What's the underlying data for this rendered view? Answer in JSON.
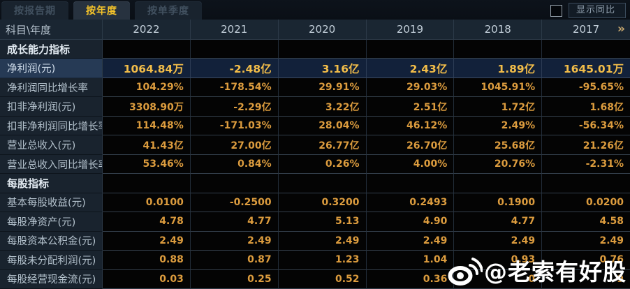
{
  "tabs": [
    {
      "label": "按报告期",
      "active": false
    },
    {
      "label": "按年度",
      "active": true
    },
    {
      "label": "按单季度",
      "active": false
    }
  ],
  "controls": {
    "show_yoy_label": "显示同比",
    "checkbox_checked": false
  },
  "table": {
    "corner_label": "科目\\年度",
    "years": [
      "2022",
      "2021",
      "2020",
      "2019",
      "2018",
      "2017"
    ],
    "more_icon": "»",
    "rows": [
      {
        "type": "section",
        "label": "成长能力指标"
      },
      {
        "type": "data",
        "highlight": true,
        "label": "净利润(元)",
        "values": [
          "1064.84万",
          "-2.48亿",
          "3.16亿",
          "2.43亿",
          "1.89亿",
          "1645.01万"
        ]
      },
      {
        "type": "data",
        "highlight": false,
        "label": "净利润同比增长率",
        "values": [
          "104.29%",
          "-178.54%",
          "29.91%",
          "29.03%",
          "1045.91%",
          "-95.65%"
        ]
      },
      {
        "type": "data",
        "highlight": false,
        "label": "扣非净利润(元)",
        "values": [
          "3308.90万",
          "-2.29亿",
          "3.22亿",
          "2.51亿",
          "1.72亿",
          "1.68亿"
        ]
      },
      {
        "type": "data",
        "highlight": false,
        "label": "扣非净利润同比增长率",
        "values": [
          "114.48%",
          "-171.03%",
          "28.04%",
          "46.12%",
          "2.49%",
          "-56.34%"
        ]
      },
      {
        "type": "data",
        "highlight": false,
        "label": "营业总收入(元)",
        "values": [
          "41.43亿",
          "27.00亿",
          "26.77亿",
          "26.70亿",
          "25.68亿",
          "21.26亿"
        ]
      },
      {
        "type": "data",
        "highlight": false,
        "label": "营业总收入同比增长率",
        "values": [
          "53.46%",
          "0.84%",
          "0.26%",
          "4.00%",
          "20.76%",
          "-2.31%"
        ]
      },
      {
        "type": "section",
        "label": "每股指标"
      },
      {
        "type": "data",
        "highlight": false,
        "label": "基本每股收益(元)",
        "values": [
          "0.0100",
          "-0.2500",
          "0.3200",
          "0.2493",
          "0.1900",
          "0.0200"
        ]
      },
      {
        "type": "data",
        "highlight": false,
        "label": "每股净资产(元)",
        "values": [
          "4.78",
          "4.77",
          "5.13",
          "4.90",
          "4.77",
          "4.58"
        ]
      },
      {
        "type": "data",
        "highlight": false,
        "label": "每股资本公积金(元)",
        "values": [
          "2.49",
          "2.49",
          "2.49",
          "2.49",
          "2.49",
          "2.49"
        ]
      },
      {
        "type": "data",
        "highlight": false,
        "label": "每股未分配利润(元)",
        "values": [
          "0.88",
          "0.87",
          "1.23",
          "1.04",
          "0.93",
          "0.76"
        ]
      },
      {
        "type": "data",
        "highlight": false,
        "label": "每股经营现金流(元)",
        "values": [
          "0.03",
          "0.25",
          "0.52",
          "0.36",
          "0",
          "9"
        ]
      }
    ]
  },
  "watermark": {
    "icon": "weibo-icon",
    "text": "@老索有好股"
  },
  "colors": {
    "accent_gold": "#f6c42a",
    "value_orange": "#dc9c3e",
    "highlight_value_gold": "#f2bd49",
    "highlight_row_bg": "#12213a",
    "label_column_bg": "#19232e",
    "header_row_bg": "#1a2632"
  }
}
